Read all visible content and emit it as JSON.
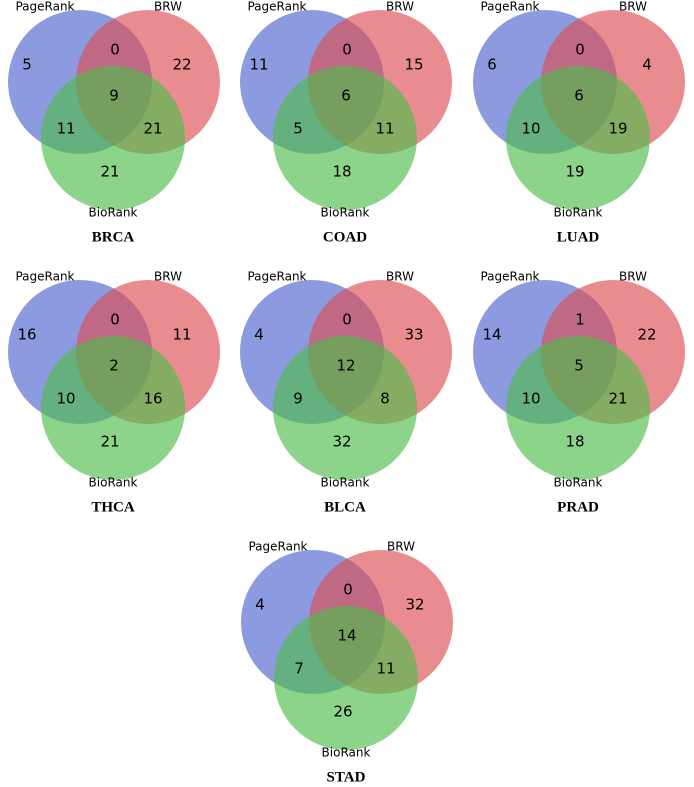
{
  "chart_data": [
    {
      "type": "venn",
      "title": "BRCA",
      "sets": [
        {
          "name": "PageRank",
          "color": "#4f66cf"
        },
        {
          "name": "BRW",
          "color": "#dc4f55"
        },
        {
          "name": "BioRank",
          "color": "#4fbd4c"
        }
      ],
      "values": [
        5,
        0,
        22,
        9,
        11,
        21,
        21
      ]
    },
    {
      "type": "venn",
      "title": "COAD",
      "sets": [
        {
          "name": "PageRank",
          "color": "#4f66cf"
        },
        {
          "name": "BRW",
          "color": "#dc4f55"
        },
        {
          "name": "BioRank",
          "color": "#4fbd4c"
        }
      ],
      "values": [
        11,
        0,
        15,
        6,
        5,
        11,
        18
      ]
    },
    {
      "type": "venn",
      "title": "LUAD",
      "sets": [
        {
          "name": "PageRank",
          "color": "#4f66cf"
        },
        {
          "name": "BRW",
          "color": "#dc4f55"
        },
        {
          "name": "BioRank",
          "color": "#4fbd4c"
        }
      ],
      "values": [
        6,
        0,
        4,
        6,
        10,
        19,
        19
      ]
    },
    {
      "type": "venn",
      "title": "THCA",
      "sets": [
        {
          "name": "PageRank",
          "color": "#4f66cf"
        },
        {
          "name": "BRW",
          "color": "#dc4f55"
        },
        {
          "name": "BioRank",
          "color": "#4fbd4c"
        }
      ],
      "values": [
        16,
        0,
        11,
        2,
        10,
        16,
        21
      ]
    },
    {
      "type": "venn",
      "title": "BLCA",
      "sets": [
        {
          "name": "PageRank",
          "color": "#4f66cf"
        },
        {
          "name": "BRW",
          "color": "#dc4f55"
        },
        {
          "name": "BioRank",
          "color": "#4fbd4c"
        }
      ],
      "values": [
        4,
        0,
        33,
        12,
        9,
        8,
        32
      ]
    },
    {
      "type": "venn",
      "title": "PRAD",
      "sets": [
        {
          "name": "PageRank",
          "color": "#4f66cf"
        },
        {
          "name": "BRW",
          "color": "#dc4f55"
        },
        {
          "name": "BioRank",
          "color": "#4fbd4c"
        }
      ],
      "values": [
        14,
        1,
        22,
        5,
        10,
        21,
        18
      ]
    },
    {
      "type": "venn",
      "title": "STAD",
      "sets": [
        {
          "name": "PageRank",
          "color": "#4f66cf"
        },
        {
          "name": "BRW",
          "color": "#dc4f55"
        },
        {
          "name": "BioRank",
          "color": "#4fbd4c"
        }
      ],
      "values": [
        4,
        0,
        32,
        14,
        7,
        11,
        26
      ]
    }
  ]
}
